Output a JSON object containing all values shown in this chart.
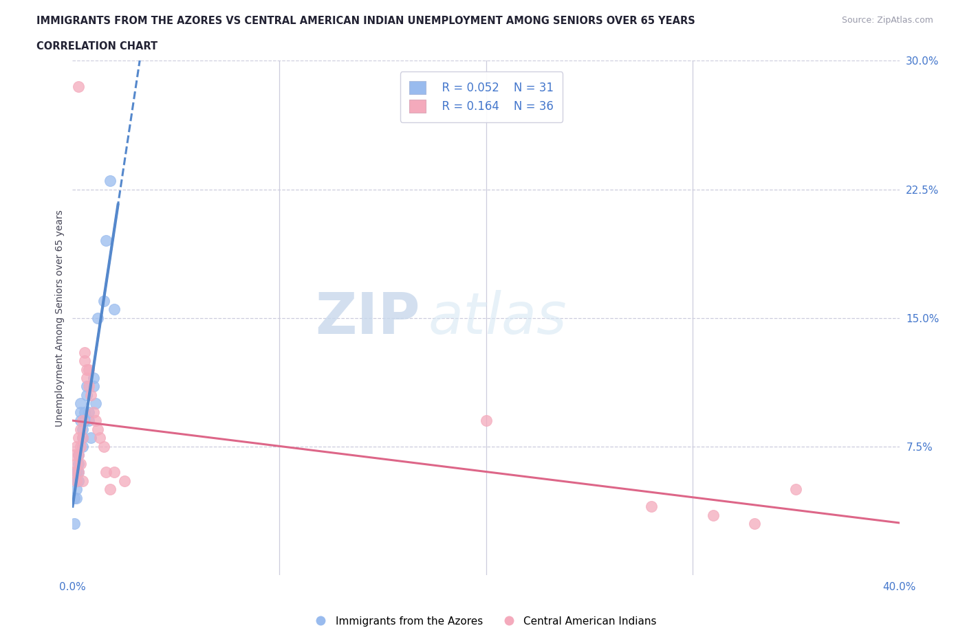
{
  "title_line1": "IMMIGRANTS FROM THE AZORES VS CENTRAL AMERICAN INDIAN UNEMPLOYMENT AMONG SENIORS OVER 65 YEARS",
  "title_line2": "CORRELATION CHART",
  "source_text": "Source: ZipAtlas.com",
  "ylabel": "Unemployment Among Seniors over 65 years",
  "xlim": [
    0.0,
    0.4
  ],
  "ylim": [
    0.0,
    0.3
  ],
  "yticks_right": [
    0.0,
    0.075,
    0.15,
    0.225,
    0.3
  ],
  "yticklabels_right": [
    "",
    "7.5%",
    "15.0%",
    "22.5%",
    "30.0%"
  ],
  "blue_color": "#99BBEE",
  "pink_color": "#F4AABC",
  "blue_line_color": "#5588CC",
  "pink_line_color": "#DD6688",
  "legend_R1": "R = 0.052",
  "legend_N1": "N = 31",
  "legend_R2": "R = 0.164",
  "legend_N2": "N = 36",
  "text_color_blue": "#4477CC",
  "grid_color": "#CCCCDD",
  "blue_scatter_x": [
    0.001,
    0.001,
    0.002,
    0.002,
    0.002,
    0.002,
    0.003,
    0.003,
    0.003,
    0.003,
    0.004,
    0.004,
    0.004,
    0.005,
    0.005,
    0.005,
    0.006,
    0.006,
    0.007,
    0.007,
    0.008,
    0.008,
    0.009,
    0.01,
    0.01,
    0.011,
    0.012,
    0.015,
    0.016,
    0.018,
    0.02
  ],
  "blue_scatter_y": [
    0.045,
    0.03,
    0.06,
    0.055,
    0.05,
    0.045,
    0.07,
    0.065,
    0.06,
    0.055,
    0.1,
    0.095,
    0.09,
    0.085,
    0.08,
    0.075,
    0.095,
    0.09,
    0.11,
    0.105,
    0.095,
    0.09,
    0.08,
    0.115,
    0.11,
    0.1,
    0.15,
    0.16,
    0.195,
    0.23,
    0.155
  ],
  "pink_scatter_x": [
    0.001,
    0.001,
    0.002,
    0.002,
    0.002,
    0.003,
    0.003,
    0.003,
    0.004,
    0.004,
    0.004,
    0.005,
    0.005,
    0.005,
    0.006,
    0.006,
    0.007,
    0.007,
    0.008,
    0.008,
    0.009,
    0.01,
    0.011,
    0.012,
    0.013,
    0.015,
    0.016,
    0.018,
    0.02,
    0.025,
    0.2,
    0.28,
    0.31,
    0.33,
    0.35,
    0.003
  ],
  "pink_scatter_y": [
    0.07,
    0.06,
    0.075,
    0.065,
    0.055,
    0.08,
    0.07,
    0.06,
    0.085,
    0.075,
    0.065,
    0.09,
    0.08,
    0.055,
    0.13,
    0.125,
    0.12,
    0.115,
    0.12,
    0.11,
    0.105,
    0.095,
    0.09,
    0.085,
    0.08,
    0.075,
    0.06,
    0.05,
    0.06,
    0.055,
    0.09,
    0.04,
    0.035,
    0.03,
    0.05,
    0.285
  ]
}
